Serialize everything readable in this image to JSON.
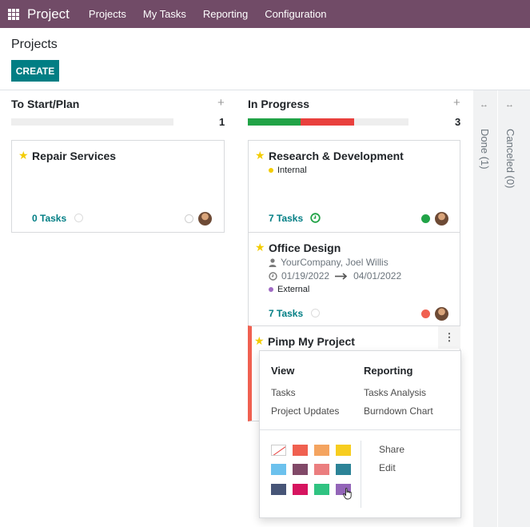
{
  "navbar": {
    "brand": "Project",
    "menu": [
      "Projects",
      "My Tasks",
      "Reporting",
      "Configuration"
    ]
  },
  "control_panel": {
    "title": "Projects",
    "create_label": "CREATE"
  },
  "columns": [
    {
      "title": "To Start/Plan",
      "count": "1",
      "progress": {
        "green": 0,
        "red": 0
      }
    },
    {
      "title": "In Progress",
      "count": "3",
      "progress": {
        "green": 0.33,
        "red": 0.33
      }
    }
  ],
  "folded_columns": [
    {
      "label": "Done (1)"
    },
    {
      "label": "Canceled (0)"
    }
  ],
  "cards": {
    "repair": {
      "title": "Repair Services",
      "tasks": "0 Tasks"
    },
    "research": {
      "title": "Research & Development",
      "tag": "Internal",
      "tag_color": "#f3cc00",
      "tasks": "7 Tasks",
      "status_color": "#21a347"
    },
    "office": {
      "title": "Office Design",
      "partner": "YourCompany, Joel Willis",
      "date_start": "01/19/2022",
      "date_end": "04/01/2022",
      "tag": "External",
      "tag_color": "#9f6ac4",
      "tasks": "7 Tasks",
      "status_color": "#f06050"
    },
    "pimp": {
      "title": "Pimp My Project",
      "color_bar": "#f06050"
    }
  },
  "dropdown": {
    "view_header": "View",
    "view_links": [
      "Tasks",
      "Project Updates"
    ],
    "reporting_header": "Reporting",
    "reporting_links": [
      "Tasks Analysis",
      "Burndown Chart"
    ],
    "actions": [
      "Share",
      "Edit"
    ],
    "colors": [
      "none",
      "#f06050",
      "#f4a460",
      "#f7cd1f",
      "#6cc1ed",
      "#814968",
      "#eb7e7f",
      "#2c8397",
      "#475577",
      "#d6145f",
      "#30c381",
      "#9365b8"
    ]
  },
  "accent_color": "#017e84",
  "brand_color": "#714b67"
}
